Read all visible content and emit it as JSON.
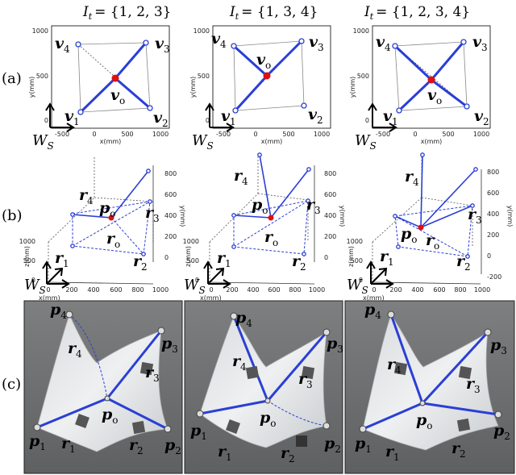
{
  "row_labels": [
    "(a)",
    "(b)",
    "(c)"
  ],
  "titles": [
    {
      "script": "I",
      "sub": "t",
      "eq": "= {1, 2, 3}"
    },
    {
      "script": "I",
      "sub": "t",
      "eq": "= {1, 3, 4}"
    },
    {
      "script": "I",
      "sub": "t",
      "eq": "= {1, 2, 3, 4}"
    }
  ],
  "row_a": {
    "x_ticks": [
      "-500",
      "0",
      "500",
      "1000"
    ],
    "y_ticks": [
      "1000",
      "500",
      "0"
    ],
    "xlabel": "x(mm)",
    "ylabel": "y(mm)",
    "frame_label": {
      "base": "W",
      "sub": "S"
    },
    "vertex": {
      "base": "v",
      "subs": [
        "1",
        "2",
        "3",
        "4",
        "o"
      ]
    }
  },
  "row_b": {
    "panels": [
      {
        "right_ticks": [
          "800",
          "600",
          "400",
          "200",
          "0"
        ],
        "right_label": "y(mm)",
        "left_ticks": [
          "1000",
          "500",
          "0"
        ],
        "left_label": "z(mm)",
        "x_ticks": [
          "0",
          "200",
          "400",
          "600",
          "800",
          "1000"
        ],
        "xlabel": "x(mm)"
      },
      {
        "right_ticks": [
          "800",
          "600",
          "400",
          "200",
          "0"
        ],
        "right_label": "y(mm)",
        "left_ticks": [
          "1000",
          "500",
          "0"
        ],
        "left_label": "z(mm)",
        "x_ticks": [
          "0",
          "200",
          "400",
          "600",
          "800",
          "1000"
        ],
        "xlabel": "x(mm)"
      },
      {
        "right_ticks": [
          "800",
          "600",
          "400",
          "200",
          "0",
          "-200"
        ],
        "right_label": "y(mm)",
        "left_ticks": [
          "1000",
          "500",
          "0"
        ],
        "left_label": "z(mm)",
        "x_ticks": [
          "0",
          "200",
          "400",
          "600",
          "800",
          "1000"
        ],
        "xlabel": "x(mm)"
      }
    ],
    "frame_label": {
      "base": "W",
      "sub": "S"
    },
    "cable": {
      "base": "r",
      "subs": [
        "1",
        "2",
        "3",
        "4",
        "o"
      ]
    },
    "point": {
      "base": "p",
      "sub": "o"
    }
  },
  "row_c": {
    "point": {
      "base": "p",
      "subs": [
        "1",
        "2",
        "3",
        "4",
        "o"
      ]
    },
    "cable": {
      "base": "r",
      "subs": [
        "1",
        "2",
        "3",
        "4"
      ]
    }
  }
}
